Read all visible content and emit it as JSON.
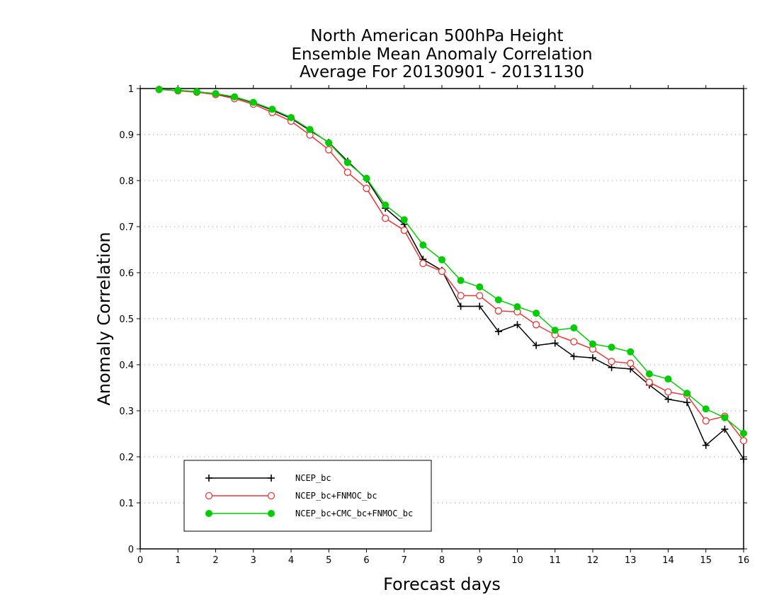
{
  "chart_data": {
    "type": "line",
    "title_lines": [
      "North American 500hPa Height",
      "Ensemble Mean Anomaly Correlation",
      "Average For 20130901 - 20131130"
    ],
    "xlabel": "Forecast days",
    "ylabel": "Anomaly Correlation",
    "xlim": [
      0,
      16
    ],
    "ylim": [
      0,
      1
    ],
    "x_ticks": [
      "0",
      "1",
      "2",
      "3",
      "4",
      "5",
      "6",
      "7",
      "8",
      "9",
      "10",
      "11",
      "12",
      "13",
      "14",
      "15",
      "16"
    ],
    "y_ticks": [
      "0",
      "0.1",
      "0.2",
      "0.3",
      "0.4",
      "0.5",
      "0.6",
      "0.7",
      "0.8",
      "0.9",
      "1"
    ],
    "grid": "horizontal dotted",
    "legend_position": "bottom-left",
    "x": [
      0.5,
      1,
      1.5,
      2,
      2.5,
      3,
      3.5,
      4,
      4.5,
      5,
      5.5,
      6,
      6.5,
      7,
      7.5,
      8,
      8.5,
      9,
      9.5,
      10,
      10.5,
      11,
      11.5,
      12,
      12.5,
      13,
      13.5,
      14,
      14.5,
      15,
      15.5,
      16
    ],
    "series": [
      {
        "name": "NCEP_bc",
        "color": "#000000",
        "marker": "plus",
        "values": [
          0.998,
          0.996,
          0.993,
          0.988,
          0.981,
          0.969,
          0.953,
          0.935,
          0.909,
          0.883,
          0.842,
          0.803,
          0.74,
          0.705,
          0.629,
          0.605,
          0.527,
          0.527,
          0.472,
          0.487,
          0.442,
          0.447,
          0.418,
          0.415,
          0.394,
          0.391,
          0.356,
          0.325,
          0.318,
          0.225,
          0.26,
          0.195
        ]
      },
      {
        "name": "NCEP_bc+FNMOC_bc",
        "color": "#e83838",
        "marker": "open-circle",
        "values": [
          0.998,
          0.995,
          0.992,
          0.987,
          0.978,
          0.966,
          0.948,
          0.929,
          0.899,
          0.867,
          0.818,
          0.783,
          0.718,
          0.692,
          0.62,
          0.603,
          0.55,
          0.55,
          0.517,
          0.515,
          0.487,
          0.465,
          0.45,
          0.434,
          0.407,
          0.403,
          0.362,
          0.341,
          0.334,
          0.278,
          0.288,
          0.235
        ]
      },
      {
        "name": "NCEP_bc+CMC_bc+FNMOC_bc",
        "color": "#00cc00",
        "marker": "filled-circle",
        "values": [
          0.998,
          0.996,
          0.993,
          0.989,
          0.982,
          0.97,
          0.955,
          0.937,
          0.911,
          0.882,
          0.839,
          0.805,
          0.747,
          0.715,
          0.66,
          0.628,
          0.583,
          0.569,
          0.541,
          0.526,
          0.512,
          0.475,
          0.48,
          0.445,
          0.438,
          0.428,
          0.38,
          0.369,
          0.338,
          0.304,
          0.285,
          0.251
        ]
      }
    ]
  }
}
